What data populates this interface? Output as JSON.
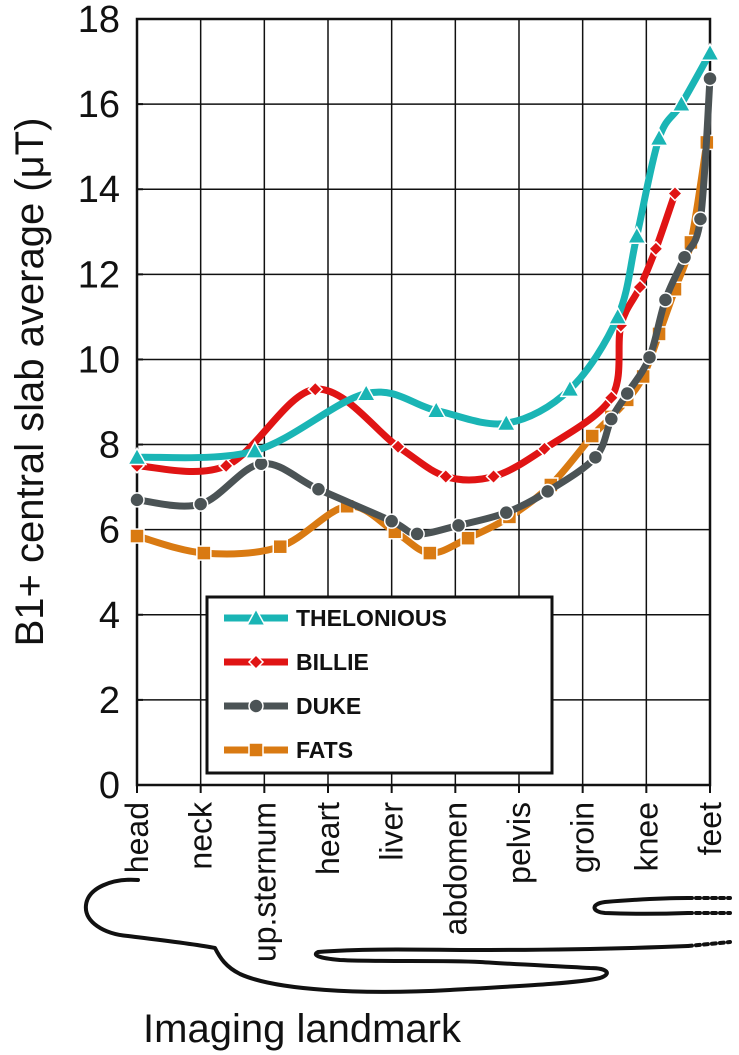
{
  "chart_data": {
    "type": "line",
    "title": "",
    "xlabel": "Imaging landmark",
    "ylabel": "B1+ central slab average (μT)",
    "ylim": [
      0,
      18
    ],
    "yticks": [
      0,
      2,
      4,
      6,
      8,
      10,
      12,
      14,
      16,
      18
    ],
    "categories": [
      "head",
      "neck",
      "up.sternum",
      "heart",
      "liver",
      "abdomen",
      "pelvis",
      "groin",
      "knee",
      "feet"
    ],
    "grid": true,
    "legend_position": "bottom-center",
    "series": [
      {
        "name": "THELONIOUS",
        "color": "#1ab5b5",
        "marker": "triangle",
        "points": [
          [
            0,
            7.7
          ],
          [
            1.85,
            7.85
          ],
          [
            3.6,
            9.2
          ],
          [
            4.7,
            8.8
          ],
          [
            5.8,
            8.5
          ],
          [
            6.8,
            9.3
          ],
          [
            7.55,
            11.0
          ],
          [
            7.85,
            12.9
          ],
          [
            8.2,
            15.2
          ],
          [
            8.55,
            16.0
          ],
          [
            9.0,
            17.2
          ]
        ]
      },
      {
        "name": "BILLIE",
        "color": "#e01414",
        "marker": "diamond",
        "points": [
          [
            0,
            7.5
          ],
          [
            1.4,
            7.5
          ],
          [
            2.8,
            9.3
          ],
          [
            4.1,
            7.95
          ],
          [
            4.85,
            7.25
          ],
          [
            5.6,
            7.25
          ],
          [
            6.4,
            7.9
          ],
          [
            7.45,
            9.1
          ],
          [
            7.6,
            10.8
          ],
          [
            7.9,
            11.7
          ],
          [
            8.15,
            12.6
          ],
          [
            8.45,
            13.9
          ]
        ]
      },
      {
        "name": "DUKE",
        "color": "#4b5355",
        "marker": "circle",
        "points": [
          [
            0,
            6.7
          ],
          [
            1.0,
            6.6
          ],
          [
            1.95,
            7.55
          ],
          [
            2.85,
            6.95
          ],
          [
            4.0,
            6.2
          ],
          [
            4.4,
            5.9
          ],
          [
            5.05,
            6.1
          ],
          [
            5.8,
            6.4
          ],
          [
            6.45,
            6.9
          ],
          [
            7.2,
            7.7
          ],
          [
            7.45,
            8.6
          ],
          [
            7.7,
            9.2
          ],
          [
            8.05,
            10.05
          ],
          [
            8.3,
            11.4
          ],
          [
            8.6,
            12.4
          ],
          [
            8.85,
            13.3
          ],
          [
            9.0,
            16.6
          ]
        ]
      },
      {
        "name": "FATS",
        "color": "#d97a12",
        "marker": "square",
        "points": [
          [
            0,
            5.85
          ],
          [
            1.05,
            5.45
          ],
          [
            2.25,
            5.6
          ],
          [
            3.3,
            6.55
          ],
          [
            4.05,
            5.95
          ],
          [
            4.6,
            5.45
          ],
          [
            5.2,
            5.8
          ],
          [
            5.85,
            6.3
          ],
          [
            6.5,
            7.05
          ],
          [
            7.15,
            8.2
          ],
          [
            7.45,
            8.65
          ],
          [
            7.7,
            9.05
          ],
          [
            7.95,
            9.6
          ],
          [
            8.2,
            10.6
          ],
          [
            8.45,
            11.65
          ],
          [
            8.7,
            12.75
          ],
          [
            8.95,
            15.1
          ]
        ]
      }
    ]
  }
}
